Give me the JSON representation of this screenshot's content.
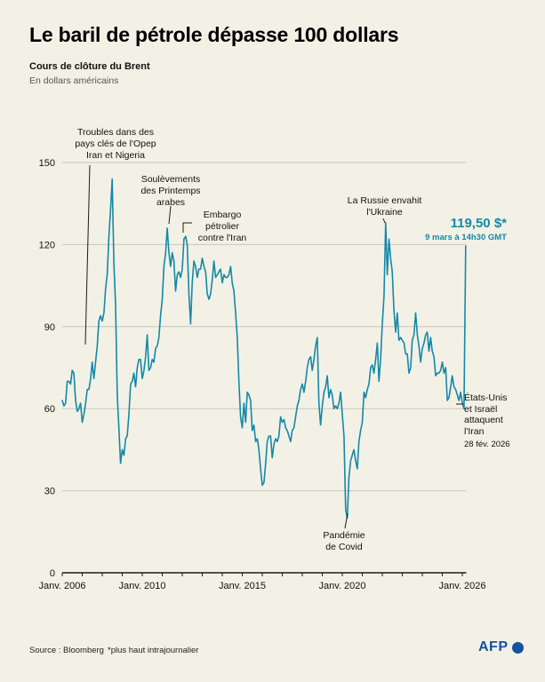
{
  "header": {
    "title": "Le baril de pétrole dépasse 100 dollars",
    "subtitle": "Cours de clôture du Brent",
    "subtitle2": "En dollars américains"
  },
  "annotations": {
    "opec": "Troubles dans des\npays clés de l'Opep\nIran et Nigeria",
    "arab_spring": "Soulèvements\ndes Printemps\narabes",
    "iran_embargo": "Embargo\npétrolier\ncontre l'Iran",
    "ukraine": "La Russie envahit\nl'Ukraine",
    "covid": "Pandémie\nde Covid",
    "us_israel": "États-Unis\net Israël\nattaquent\nl'Iran",
    "us_israel_date": "28 fév. 2026",
    "price": "119,50 $*",
    "price_time": "9 mars à 14h30 GMT"
  },
  "footer": {
    "source": "Source : Bloomberg",
    "note": "*plus haut intrajournalier",
    "logo": "AFP"
  },
  "colors": {
    "accent": "#1489a8",
    "background": "#f3f1e6",
    "afp_blue": "#1353a0"
  },
  "chart_data": {
    "type": "line",
    "title": "Cours de clôture du Brent",
    "ylabel": "En dollars américains",
    "x_start": 2006,
    "x_step_months": 1,
    "xlim": [
      2006,
      2026.2
    ],
    "ylim": [
      0,
      150
    ],
    "yticks": [
      0,
      30,
      60,
      90,
      120,
      150
    ],
    "xticks": [
      {
        "value": 2006,
        "label": "Janv. 2006"
      },
      {
        "value": 2010,
        "label": "Janv. 2010"
      },
      {
        "value": 2015,
        "label": "Janv. 2015"
      },
      {
        "value": 2020,
        "label": "Janv. 2020"
      },
      {
        "value": 2026,
        "label": "Janv. 2026"
      }
    ],
    "minor_tick_every_years": 1,
    "grid": true,
    "legend": "none",
    "series": [
      {
        "name": "Brent (USD)",
        "values": [
          63,
          61,
          62,
          70,
          70,
          69,
          74,
          73,
          63,
          59,
          60,
          62,
          55,
          58,
          62,
          67,
          67,
          71,
          77,
          71,
          77,
          83,
          92,
          94,
          92,
          95,
          104,
          109,
          123,
          133,
          144,
          113,
          98,
          65,
          53,
          40,
          45,
          43,
          49,
          50,
          58,
          69,
          70,
          73,
          68,
          75,
          78,
          78,
          71,
          74,
          79,
          87,
          74,
          75,
          78,
          77,
          82,
          83,
          86,
          94,
          100,
          112,
          117,
          126,
          117,
          112,
          117,
          114,
          103,
          109,
          110,
          108,
          111,
          122,
          123,
          120,
          102,
          91,
          106,
          114,
          112,
          108,
          111,
          111,
          115,
          112,
          110,
          102,
          100,
          102,
          107,
          114,
          108,
          109,
          110,
          111,
          106,
          109,
          108,
          108,
          109,
          112,
          106,
          103,
          95,
          86,
          70,
          57,
          53,
          62,
          55,
          66,
          65,
          63,
          52,
          54,
          48,
          49,
          45,
          38,
          32,
          33,
          40,
          48,
          50,
          50,
          42,
          47,
          49,
          48,
          50,
          57,
          55,
          56,
          53,
          52,
          50,
          48,
          52,
          53,
          57,
          61,
          63,
          67,
          69,
          66,
          70,
          75,
          78,
          79,
          74,
          78,
          83,
          86,
          62,
          54,
          61,
          66,
          68,
          72,
          64,
          67,
          65,
          60,
          61,
          60,
          62,
          66,
          58,
          50,
          23,
          20,
          35,
          41,
          43,
          45,
          41,
          38,
          48,
          52,
          55,
          66,
          64,
          67,
          69,
          75,
          76,
          73,
          78,
          84,
          70,
          78,
          91,
          101,
          128,
          109,
          122,
          115,
          110,
          96,
          88,
          95,
          85,
          86,
          85,
          84,
          80,
          80,
          73,
          75,
          85,
          87,
          95,
          87,
          83,
          77,
          82,
          84,
          87,
          88,
          81,
          86,
          81,
          79,
          72,
          73,
          73,
          74,
          77,
          73,
          75,
          63,
          64,
          68,
          72,
          68,
          67,
          65,
          63,
          66,
          62,
          60,
          119.5
        ]
      }
    ]
  }
}
